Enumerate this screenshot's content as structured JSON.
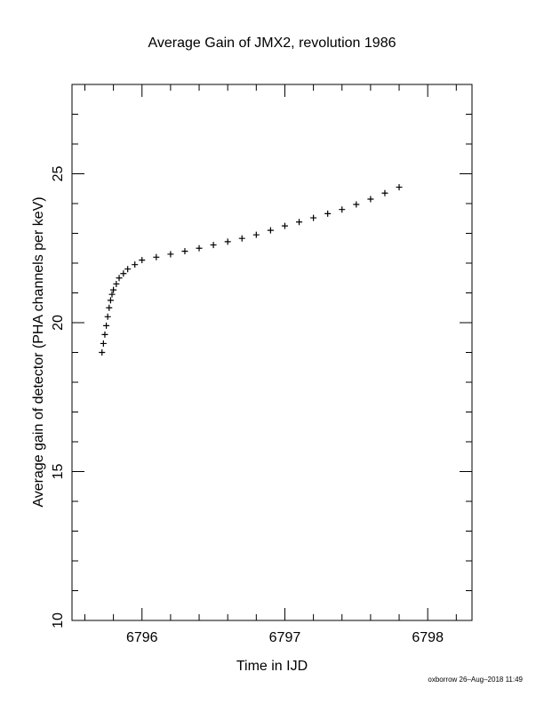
{
  "chart_data": {
    "type": "scatter",
    "title": "Average Gain of JMX2, revolution 1986",
    "x_label": "Time in IJD",
    "y_label": "Average gain of detector (PHA channels per keV)",
    "footer": "oxborrow 26–Aug–2018 11:49",
    "marker": "plus",
    "color": "#000000",
    "x": [
      6795.72,
      6795.73,
      6795.74,
      6795.75,
      6795.76,
      6795.77,
      6795.78,
      6795.79,
      6795.8,
      6795.82,
      6795.84,
      6795.87,
      6795.9,
      6795.95,
      6796.0,
      6796.1,
      6796.2,
      6796.3,
      6796.4,
      6796.5,
      6796.6,
      6796.7,
      6796.8,
      6796.9,
      6797.0,
      6797.1,
      6797.2,
      6797.3,
      6797.4,
      6797.5,
      6797.6,
      6797.7,
      6797.8
    ],
    "y": [
      19.0,
      19.3,
      19.6,
      19.9,
      20.2,
      20.5,
      20.75,
      20.95,
      21.1,
      21.3,
      21.5,
      21.65,
      21.8,
      21.95,
      22.1,
      22.2,
      22.3,
      22.4,
      22.5,
      22.61,
      22.72,
      22.83,
      22.95,
      23.1,
      23.25,
      23.38,
      23.52,
      23.66,
      23.8,
      23.97,
      24.15,
      24.35,
      24.55
    ],
    "xlim": [
      6795.51,
      6798.31
    ],
    "ylim": [
      10,
      28
    ],
    "xticks": [
      6796,
      6797,
      6798
    ],
    "yticks": [
      10,
      15,
      20,
      25
    ],
    "xminorticks": [
      6795.6,
      6795.8,
      6796.2,
      6796.4,
      6796.6,
      6796.8,
      6797.2,
      6797.4,
      6797.6,
      6797.8,
      6798.2
    ],
    "yminorticks": [
      11,
      12,
      13,
      14,
      16,
      17,
      18,
      19,
      21,
      22,
      23,
      24,
      26,
      27
    ]
  }
}
